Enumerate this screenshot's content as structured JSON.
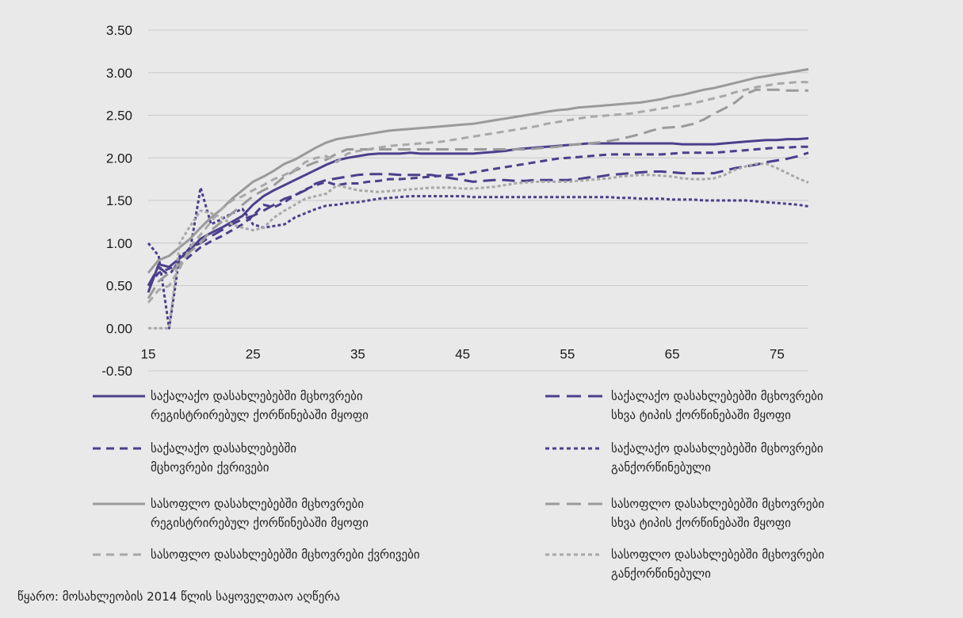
{
  "chart_data": {
    "type": "line",
    "xlim": [
      15,
      78
    ],
    "ylim": [
      -0.5,
      3.5
    ],
    "x_ticks": [
      "15",
      "25",
      "35",
      "45",
      "55",
      "65",
      "75"
    ],
    "x_tick_values": [
      15,
      25,
      35,
      45,
      55,
      65,
      75
    ],
    "y_ticks": [
      "3.50",
      "3.00",
      "2.50",
      "2.00",
      "1.50",
      "1.00",
      "0.50",
      "0.00",
      "-0.50"
    ],
    "y_tick_values": [
      3.5,
      3.0,
      2.5,
      2.0,
      1.5,
      1.0,
      0.5,
      0.0,
      -0.5
    ],
    "grid": "horizontal",
    "legend_position": "bottom",
    "x": [
      15,
      16,
      17,
      18,
      19,
      20,
      21,
      22,
      23,
      24,
      25,
      26,
      27,
      28,
      29,
      30,
      31,
      32,
      33,
      34,
      35,
      36,
      37,
      38,
      39,
      40,
      41,
      42,
      43,
      44,
      45,
      46,
      47,
      48,
      49,
      50,
      51,
      52,
      53,
      54,
      55,
      56,
      57,
      58,
      59,
      60,
      61,
      62,
      63,
      64,
      65,
      66,
      67,
      68,
      69,
      70,
      71,
      72,
      73,
      74,
      75,
      76,
      77,
      78
    ],
    "series": [
      {
        "name": "საქალაქო დასახლებებში მცხოვრები\nრეგისტრირებულ ქორწინებაში მყოფი",
        "color": "#4b3f8c",
        "dash": "solid",
        "values": [
          0.42,
          0.75,
          0.72,
          0.82,
          0.92,
          1.05,
          1.12,
          1.18,
          1.25,
          1.32,
          1.45,
          1.55,
          1.62,
          1.68,
          1.74,
          1.8,
          1.86,
          1.92,
          1.97,
          2.0,
          2.02,
          2.04,
          2.05,
          2.05,
          2.05,
          2.06,
          2.05,
          2.05,
          2.05,
          2.05,
          2.05,
          2.05,
          2.06,
          2.07,
          2.08,
          2.1,
          2.11,
          2.12,
          2.13,
          2.14,
          2.15,
          2.16,
          2.17,
          2.17,
          2.17,
          2.17,
          2.17,
          2.17,
          2.17,
          2.17,
          2.17,
          2.16,
          2.16,
          2.16,
          2.16,
          2.17,
          2.18,
          2.19,
          2.2,
          2.21,
          2.21,
          2.22,
          2.22,
          2.23
        ]
      },
      {
        "name": "საქალაქო დასახლებებში მცხოვრები\nსხვა ტიპის ქორწინებაში მყოფი",
        "color": "#4b3f8c",
        "dash": "longdash",
        "values": [
          0.5,
          0.72,
          0.62,
          0.8,
          0.95,
          1.0,
          1.08,
          1.15,
          1.22,
          1.28,
          1.32,
          1.38,
          1.45,
          1.52,
          1.56,
          1.62,
          1.7,
          1.74,
          1.76,
          1.78,
          1.8,
          1.81,
          1.81,
          1.81,
          1.8,
          1.8,
          1.8,
          1.8,
          1.78,
          1.76,
          1.74,
          1.72,
          1.73,
          1.74,
          1.74,
          1.73,
          1.73,
          1.74,
          1.74,
          1.74,
          1.74,
          1.75,
          1.77,
          1.78,
          1.8,
          1.81,
          1.82,
          1.83,
          1.84,
          1.84,
          1.83,
          1.82,
          1.82,
          1.82,
          1.82,
          1.85,
          1.88,
          1.9,
          1.92,
          1.95,
          1.97,
          1.99,
          2.02,
          2.06
        ]
      },
      {
        "name": "საქალაქო დასახლებებში\nმცხოვრები ქვრივები",
        "color": "#4b3f8c",
        "dash": "dash",
        "values": [
          0.5,
          0.65,
          0.7,
          0.75,
          0.85,
          0.95,
          1.02,
          1.08,
          1.15,
          1.22,
          1.32,
          1.45,
          1.42,
          1.48,
          1.56,
          1.63,
          1.68,
          1.72,
          1.68,
          1.7,
          1.7,
          1.72,
          1.73,
          1.75,
          1.75,
          1.76,
          1.77,
          1.78,
          1.79,
          1.8,
          1.81,
          1.83,
          1.85,
          1.87,
          1.89,
          1.91,
          1.93,
          1.95,
          1.97,
          1.99,
          2.0,
          2.01,
          2.02,
          2.03,
          2.04,
          2.04,
          2.04,
          2.04,
          2.04,
          2.04,
          2.05,
          2.06,
          2.06,
          2.06,
          2.06,
          2.07,
          2.08,
          2.09,
          2.1,
          2.11,
          2.12,
          2.12,
          2.13,
          2.13
        ]
      },
      {
        "name": "საქალაქო დასახლებებში მცხოვრები\nგანქორწინებული",
        "color": "#4b3f8c",
        "dash": "dot",
        "values": [
          1.0,
          0.85,
          0.0,
          0.85,
          0.92,
          1.65,
          1.22,
          1.28,
          1.35,
          1.4,
          1.22,
          1.18,
          1.2,
          1.22,
          1.3,
          1.35,
          1.4,
          1.44,
          1.45,
          1.47,
          1.48,
          1.5,
          1.52,
          1.53,
          1.54,
          1.55,
          1.55,
          1.55,
          1.55,
          1.55,
          1.55,
          1.54,
          1.54,
          1.54,
          1.54,
          1.54,
          1.54,
          1.54,
          1.54,
          1.54,
          1.54,
          1.54,
          1.54,
          1.54,
          1.54,
          1.53,
          1.53,
          1.52,
          1.52,
          1.52,
          1.51,
          1.51,
          1.51,
          1.5,
          1.5,
          1.5,
          1.5,
          1.5,
          1.49,
          1.48,
          1.47,
          1.46,
          1.45,
          1.43
        ]
      },
      {
        "name": "სასოფლო დასახლებებში მცხოვრები\nრეგისტრირებულ ქორწინებაში მყოფი",
        "color": "#9a9a9a",
        "dash": "solid",
        "values": [
          0.65,
          0.8,
          0.85,
          0.95,
          1.05,
          1.18,
          1.3,
          1.4,
          1.52,
          1.62,
          1.72,
          1.78,
          1.85,
          1.93,
          1.98,
          2.05,
          2.12,
          2.18,
          2.22,
          2.24,
          2.26,
          2.28,
          2.3,
          2.32,
          2.33,
          2.34,
          2.35,
          2.36,
          2.37,
          2.38,
          2.39,
          2.4,
          2.42,
          2.44,
          2.46,
          2.48,
          2.5,
          2.52,
          2.54,
          2.56,
          2.57,
          2.59,
          2.6,
          2.61,
          2.62,
          2.63,
          2.64,
          2.65,
          2.67,
          2.69,
          2.72,
          2.74,
          2.77,
          2.8,
          2.82,
          2.85,
          2.88,
          2.91,
          2.94,
          2.96,
          2.98,
          3.0,
          3.02,
          3.04
        ]
      },
      {
        "name": "სასოფლო დასახლებებში მცხოვრები\nსხვა ტიპის ქორწინებაში მყოფი",
        "color": "#9a9a9a",
        "dash": "longdash",
        "values": [
          0.35,
          0.55,
          0.65,
          0.75,
          0.9,
          1.0,
          1.15,
          1.25,
          1.35,
          1.45,
          1.55,
          1.62,
          1.68,
          1.78,
          1.85,
          1.9,
          1.95,
          1.98,
          2.05,
          2.1,
          2.1,
          2.1,
          2.1,
          2.1,
          2.1,
          2.1,
          2.1,
          2.1,
          2.1,
          2.1,
          2.1,
          2.1,
          2.1,
          2.1,
          2.1,
          2.1,
          2.1,
          2.11,
          2.12,
          2.13,
          2.15,
          2.16,
          2.17,
          2.18,
          2.2,
          2.22,
          2.25,
          2.28,
          2.32,
          2.35,
          2.36,
          2.37,
          2.4,
          2.45,
          2.52,
          2.58,
          2.65,
          2.75,
          2.8,
          2.8,
          2.8,
          2.79,
          2.79,
          2.79
        ]
      },
      {
        "name": "სასოფლო დასახლებებში მცხოვრები ქვრივები",
        "color": "#a8a8a8",
        "dash": "dash",
        "values": [
          0.3,
          0.45,
          0.5,
          0.7,
          0.95,
          1.1,
          1.25,
          1.4,
          1.5,
          1.55,
          1.62,
          1.68,
          1.75,
          1.8,
          1.86,
          1.95,
          2.0,
          2.02,
          1.95,
          2.05,
          2.08,
          2.1,
          2.12,
          2.14,
          2.15,
          2.16,
          2.17,
          2.18,
          2.19,
          2.21,
          2.23,
          2.25,
          2.27,
          2.29,
          2.31,
          2.33,
          2.35,
          2.37,
          2.4,
          2.42,
          2.44,
          2.46,
          2.48,
          2.49,
          2.5,
          2.51,
          2.52,
          2.54,
          2.56,
          2.58,
          2.6,
          2.62,
          2.64,
          2.67,
          2.7,
          2.73,
          2.77,
          2.8,
          2.83,
          2.85,
          2.87,
          2.88,
          2.89,
          2.89
        ]
      },
      {
        "name": "სასოფლო დასახლებებში მცხოვრები\nგანქორწინებული",
        "color": "#a8a8a8",
        "dash": "dot",
        "values": [
          0.0,
          0.0,
          0.0,
          1.0,
          1.2,
          1.38,
          1.35,
          1.3,
          1.22,
          1.18,
          1.15,
          1.18,
          1.3,
          1.38,
          1.45,
          1.52,
          1.55,
          1.58,
          1.68,
          1.65,
          1.62,
          1.61,
          1.6,
          1.61,
          1.62,
          1.63,
          1.64,
          1.65,
          1.65,
          1.65,
          1.64,
          1.64,
          1.65,
          1.66,
          1.68,
          1.7,
          1.71,
          1.72,
          1.72,
          1.72,
          1.72,
          1.73,
          1.74,
          1.75,
          1.76,
          1.78,
          1.79,
          1.8,
          1.8,
          1.79,
          1.78,
          1.76,
          1.75,
          1.75,
          1.76,
          1.8,
          1.86,
          1.9,
          1.93,
          1.93,
          1.88,
          1.82,
          1.76,
          1.71
        ]
      }
    ]
  },
  "legend": [
    {
      "label": "საქალაქო დასახლებებში მცხოვრები\nრეგისტრირებულ ქორწინებაში მყოფი"
    },
    {
      "label": "საქალაქო დასახლებებში მცხოვრები\nსხვა ტიპის ქორწინებაში მყოფი"
    },
    {
      "label": "საქალაქო დასახლებებში\nმცხოვრები ქვრივები"
    },
    {
      "label": "საქალაქო დასახლებებში მცხოვრები\nგანქორწინებული"
    },
    {
      "label": "სასოფლო დასახლებებში მცხოვრები\nრეგისტრირებულ ქორწინებაში მყოფი"
    },
    {
      "label": "სასოფლო დასახლებებში მცხოვრები\nსხვა ტიპის ქორწინებაში მყოფი"
    },
    {
      "label": " სასოფლო დასახლებებში მცხოვრები ქვრივები"
    },
    {
      "label": "სასოფლო დასახლებებში მცხოვრები\nგანქორწინებული"
    }
  ],
  "source": "წყარო: მოსახლეობის 2014 წლის საყოველთაო აღწერა"
}
